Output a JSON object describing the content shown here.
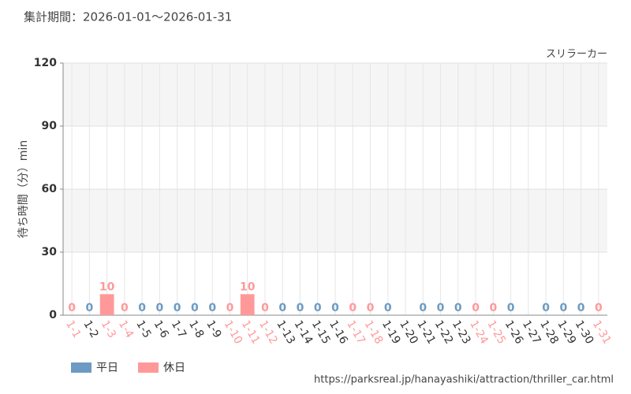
{
  "chart_data": {
    "type": "bar",
    "title": "集計期間：2026-01-01～2026-01-31",
    "subtitle": "スリラーカー",
    "y_label": "待ち時間（分）min",
    "source": "https://parksreal.jp/hanayashiki/attraction/thriller_car.html",
    "categories": [
      "1-1",
      "1-2",
      "1-3",
      "1-4",
      "1-5",
      "1-6",
      "1-7",
      "1-8",
      "1-9",
      "1-10",
      "1-11",
      "1-12",
      "1-13",
      "1-14",
      "1-15",
      "1-16",
      "1-17",
      "1-18",
      "1-19",
      "1-20",
      "1-21",
      "1-22",
      "1-23",
      "1-24",
      "1-25",
      "1-26",
      "1-27",
      "1-28",
      "1-29",
      "1-30",
      "1-31"
    ],
    "series": [
      {
        "name": "平日",
        "color": "#6b9bc3",
        "values": [
          null,
          0,
          null,
          null,
          0,
          0,
          0,
          0,
          0,
          null,
          null,
          null,
          0,
          0,
          0,
          0,
          null,
          null,
          0,
          null,
          0,
          0,
          0,
          null,
          null,
          0,
          null,
          0,
          0,
          0,
          null
        ]
      },
      {
        "name": "休日",
        "color": "#ff9999",
        "values": [
          0,
          null,
          10,
          0,
          null,
          null,
          null,
          null,
          null,
          0,
          10,
          0,
          null,
          null,
          null,
          null,
          0,
          0,
          null,
          null,
          null,
          null,
          null,
          0,
          0,
          null,
          null,
          null,
          null,
          null,
          0
        ]
      }
    ],
    "ylim": [
      0,
      120
    ],
    "yticks": [
      0,
      30,
      60,
      90,
      120
    ],
    "grid": true
  }
}
